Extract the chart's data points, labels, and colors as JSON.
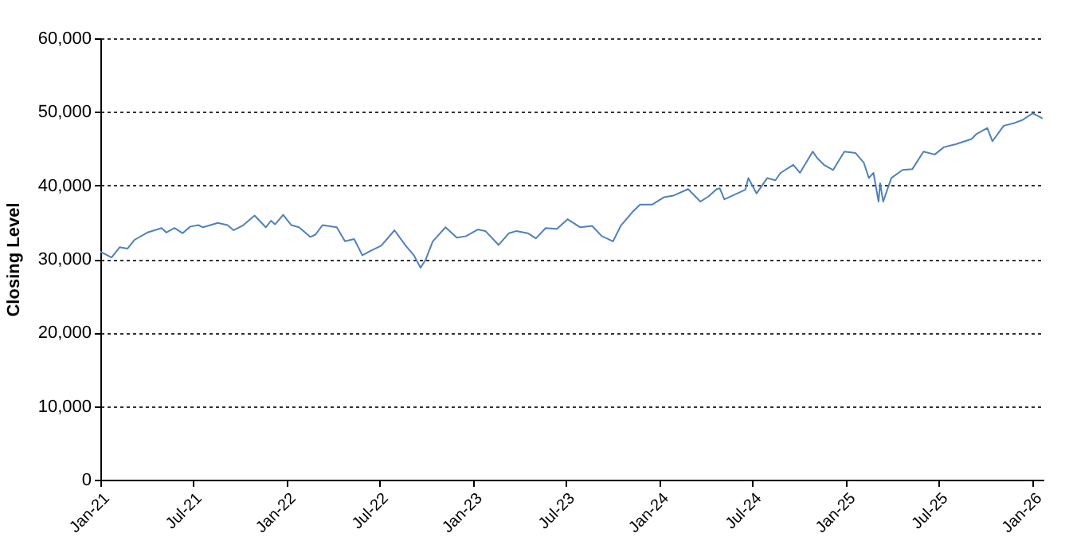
{
  "chart_data": {
    "type": "line",
    "ylabel": "Closing Level",
    "x": [
      "2021-01-01",
      "2021-01-23",
      "2021-02-08",
      "2021-02-23",
      "2021-03-09",
      "2021-04-03",
      "2021-05-01",
      "2021-05-10",
      "2021-05-26",
      "2021-06-11",
      "2021-06-26",
      "2021-07-12",
      "2021-07-21",
      "2021-08-19",
      "2021-09-07",
      "2021-09-19",
      "2021-10-08",
      "2021-10-30",
      "2021-11-21",
      "2021-12-01",
      "2021-12-09",
      "2021-12-25",
      "2022-01-10",
      "2022-01-25",
      "2022-02-16",
      "2022-02-26",
      "2022-03-12",
      "2022-04-09",
      "2022-04-25",
      "2022-05-13",
      "2022-05-29",
      "2022-06-14",
      "2022-07-05",
      "2022-07-31",
      "2022-08-22",
      "2022-09-07",
      "2022-09-20",
      "2022-09-30",
      "2022-10-14",
      "2022-11-08",
      "2022-11-30",
      "2022-12-18",
      "2023-01-10",
      "2023-01-25",
      "2023-02-20",
      "2023-03-12",
      "2023-03-27",
      "2023-04-18",
      "2023-05-04",
      "2023-05-23",
      "2023-06-14",
      "2023-07-05",
      "2023-07-30",
      "2023-08-22",
      "2023-09-10",
      "2023-10-02",
      "2023-10-17",
      "2023-11-08",
      "2023-11-24",
      "2023-12-18",
      "2024-01-10",
      "2024-01-28",
      "2024-02-26",
      "2024-03-21",
      "2024-04-06",
      "2024-04-22",
      "2024-04-28",
      "2024-05-07",
      "2024-06-17",
      "2024-06-23",
      "2024-07-09",
      "2024-07-30",
      "2024-08-15",
      "2024-08-25",
      "2024-09-19",
      "2024-10-02",
      "2024-10-27",
      "2024-11-05",
      "2024-11-18",
      "2024-12-06",
      "2024-12-28",
      "2025-01-19",
      "2025-02-04",
      "2025-02-14",
      "2025-02-23",
      "2025-03-05",
      "2025-03-08",
      "2025-03-14",
      "2025-03-30",
      "2025-04-21",
      "2025-05-10",
      "2025-06-01",
      "2025-06-23",
      "2025-07-11",
      "2025-08-03",
      "2025-09-03",
      "2025-09-13",
      "2025-10-04",
      "2025-10-14",
      "2025-11-05",
      "2025-11-27",
      "2025-12-12",
      "2026-01-01",
      "2026-01-20"
    ],
    "series": [
      {
        "color": "#4f81bd",
        "values": [
          31000,
          30200,
          31600,
          31400,
          32600,
          33600,
          34200,
          33600,
          34200,
          33500,
          34400,
          34600,
          34300,
          34900,
          34600,
          33900,
          34600,
          35900,
          34300,
          35200,
          34700,
          36000,
          34600,
          34300,
          33000,
          33300,
          34600,
          34300,
          32400,
          32700,
          30500,
          31100,
          31800,
          33900,
          31800,
          30500,
          28800,
          29900,
          32400,
          34300,
          32900,
          33100,
          34000,
          33800,
          31900,
          33500,
          33800,
          33500,
          32800,
          34200,
          34100,
          35400,
          34300,
          34500,
          33100,
          32400,
          34500,
          36300,
          37400,
          37400,
          38400,
          38600,
          39500,
          37800,
          38500,
          39500,
          39600,
          38100,
          39400,
          41000,
          38900,
          41000,
          40700,
          41700,
          42800,
          41700,
          44600,
          43700,
          42800,
          42100,
          44600,
          44400,
          43100,
          41000,
          41700,
          37800,
          40300,
          37800,
          41000,
          42100,
          42200,
          44600,
          44200,
          45200,
          45600,
          46300,
          47000,
          47800,
          46000,
          48100,
          48500,
          48900,
          49800,
          49100
        ]
      }
    ],
    "xlim": [
      "2021-01-01",
      "2026-01-22"
    ],
    "xticks": [
      {
        "value": "2021-01-01",
        "label": "Jan-21"
      },
      {
        "value": "2021-07-01",
        "label": "Jul-21"
      },
      {
        "value": "2022-01-01",
        "label": "Jan-22"
      },
      {
        "value": "2022-07-01",
        "label": "Jul-22"
      },
      {
        "value": "2023-01-01",
        "label": "Jan-23"
      },
      {
        "value": "2023-07-01",
        "label": "Jul-23"
      },
      {
        "value": "2024-01-01",
        "label": "Jan-24"
      },
      {
        "value": "2024-07-01",
        "label": "Jul-24"
      },
      {
        "value": "2025-01-01",
        "label": "Jan-25"
      },
      {
        "value": "2025-07-01",
        "label": "Jul-25"
      },
      {
        "value": "2026-01-01",
        "label": "Jan-26"
      }
    ],
    "ylim": [
      0,
      60000
    ],
    "yticks": [
      0,
      {
        "value": 10000,
        "label": "10,000"
      },
      {
        "value": 20000,
        "label": "20,000"
      },
      {
        "value": 30000,
        "label": "30,000"
      },
      {
        "value": 40000,
        "label": "40,000"
      },
      {
        "value": 50000,
        "label": "50,000"
      },
      {
        "value": 60000,
        "label": "60,000"
      }
    ],
    "grid": "y",
    "legend": false,
    "marker": "none",
    "line_style": "solid"
  }
}
